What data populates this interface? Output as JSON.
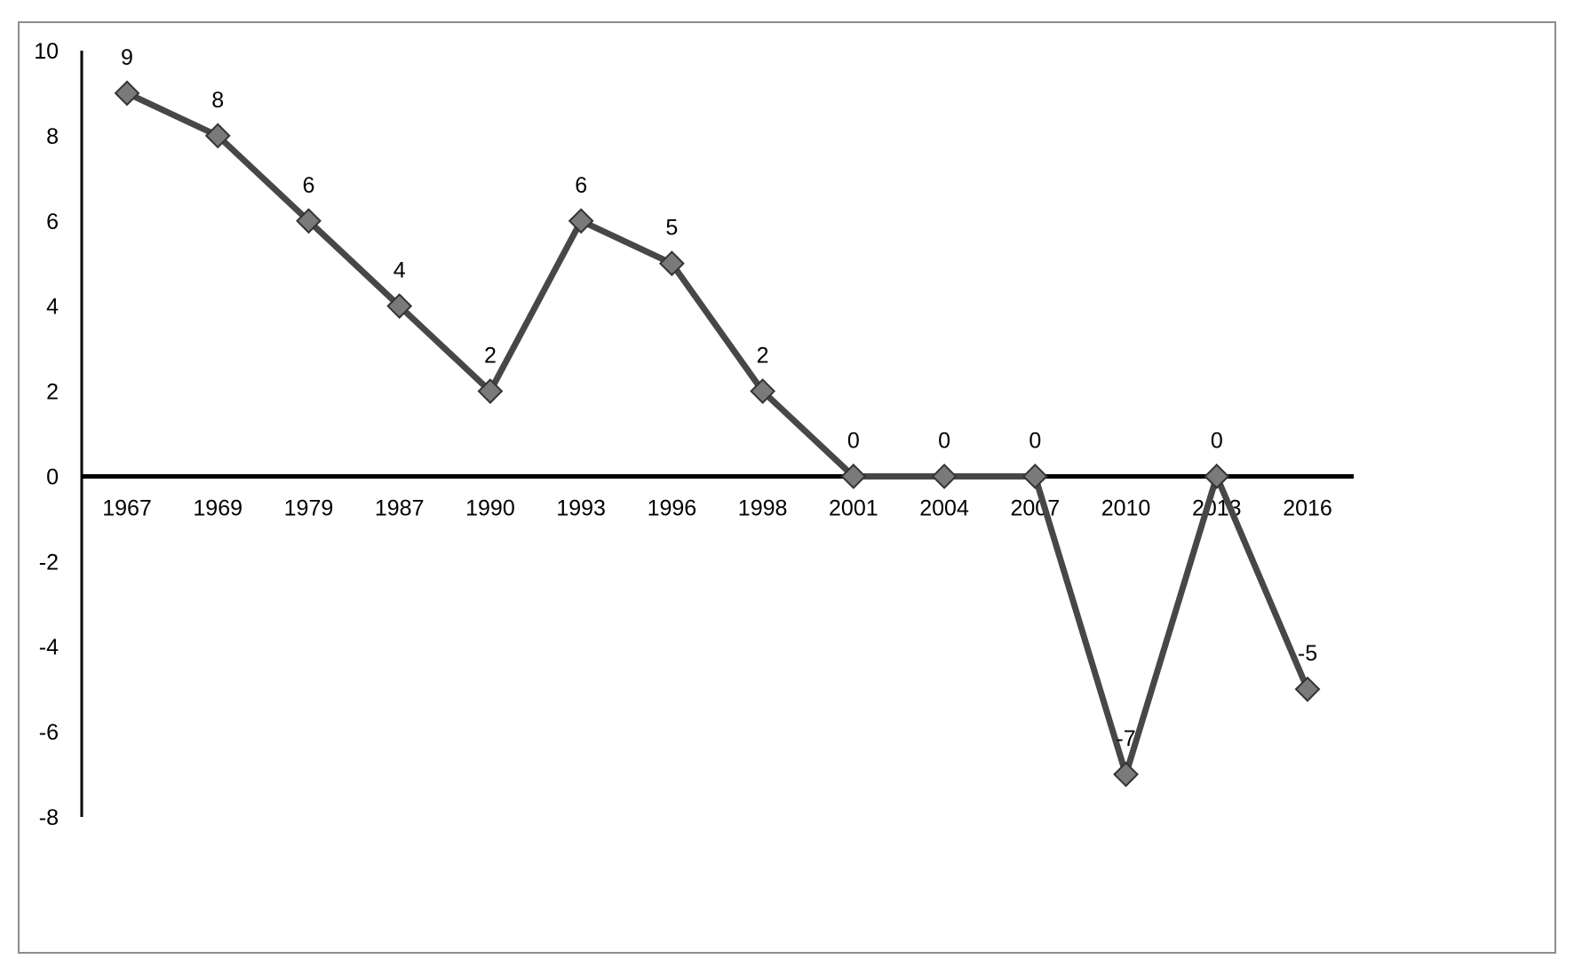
{
  "chart_data": {
    "type": "line",
    "title": "",
    "xlabel": "",
    "ylabel": "",
    "categories": [
      "1967",
      "1969",
      "1979",
      "1987",
      "1990",
      "1993",
      "1996",
      "1998",
      "2001",
      "2004",
      "2007",
      "2010",
      "2013",
      "2016"
    ],
    "series": [
      {
        "values": [
          9,
          8,
          6,
          4,
          2,
          6,
          5,
          2,
          0,
          0,
          0,
          -7,
          0,
          -5
        ],
        "data_labels": [
          "9",
          "8",
          "6",
          "4",
          "2",
          "6",
          "5",
          "2",
          "0",
          "0",
          "0",
          "-7",
          "0",
          "-5"
        ],
        "line_color": "#474747",
        "marker_color": "#7a7a7a",
        "marker": "diamond"
      }
    ],
    "ylim": [
      -8,
      10
    ],
    "y_ticks": [
      "10",
      "8",
      "6",
      "4",
      "2",
      "0",
      "-2",
      "-4",
      "-6",
      "-8"
    ],
    "y_tick_values": [
      10,
      8,
      6,
      4,
      2,
      0,
      -2,
      -4,
      -6,
      -8
    ],
    "grid": false,
    "legend": "none"
  }
}
